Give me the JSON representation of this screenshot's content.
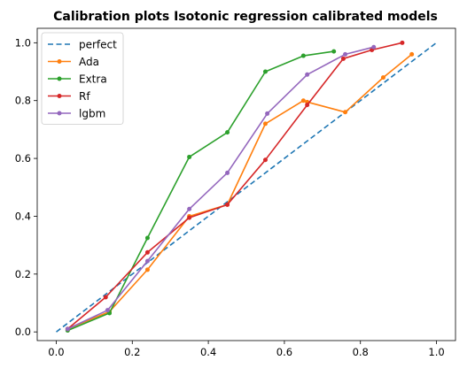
{
  "chart_data": {
    "type": "line",
    "title": "Calibration plots Isotonic regression calibrated models",
    "xlabel": "",
    "ylabel": "",
    "xlim": [
      -0.05,
      1.05
    ],
    "ylim": [
      -0.03,
      1.05
    ],
    "xticks": [
      0.0,
      0.2,
      0.4,
      0.6,
      0.8,
      1.0
    ],
    "yticks": [
      0.0,
      0.2,
      0.4,
      0.6,
      0.8,
      1.0
    ],
    "xtick_labels": [
      "0.0",
      "0.2",
      "0.4",
      "0.6",
      "0.8",
      "1.0"
    ],
    "ytick_labels": [
      "0.0",
      "0.2",
      "0.4",
      "0.6",
      "0.8",
      "1.0"
    ],
    "legend_position": "top-left",
    "series": [
      {
        "name": "perfect",
        "color": "#1f77b4",
        "style": "dashed",
        "markers": false,
        "x": [
          0.0,
          1.0
        ],
        "y": [
          0.0,
          1.0
        ]
      },
      {
        "name": "Ada",
        "color": "#ff7f0e",
        "style": "solid",
        "markers": true,
        "x": [
          0.03,
          0.14,
          0.24,
          0.35,
          0.45,
          0.55,
          0.65,
          0.66,
          0.76,
          0.86,
          0.935
        ],
        "y": [
          0.01,
          0.07,
          0.215,
          0.4,
          0.44,
          0.72,
          0.8,
          0.795,
          0.76,
          0.88,
          0.96
        ]
      },
      {
        "name": "Extra",
        "color": "#2ca02c",
        "style": "solid",
        "markers": true,
        "x": [
          0.03,
          0.14,
          0.24,
          0.35,
          0.45,
          0.55,
          0.65,
          0.73
        ],
        "y": [
          0.005,
          0.065,
          0.325,
          0.605,
          0.69,
          0.9,
          0.955,
          0.97
        ]
      },
      {
        "name": "Rf",
        "color": "#d62728",
        "style": "solid",
        "markers": true,
        "x": [
          0.03,
          0.13,
          0.24,
          0.35,
          0.45,
          0.55,
          0.66,
          0.755,
          0.83,
          0.91
        ],
        "y": [
          0.01,
          0.12,
          0.275,
          0.395,
          0.44,
          0.595,
          0.785,
          0.945,
          0.975,
          1.0
        ]
      },
      {
        "name": "lgbm",
        "color": "#9467bd",
        "style": "solid",
        "markers": true,
        "x": [
          0.03,
          0.135,
          0.24,
          0.35,
          0.45,
          0.555,
          0.66,
          0.76,
          0.835
        ],
        "y": [
          0.01,
          0.075,
          0.245,
          0.425,
          0.55,
          0.755,
          0.89,
          0.96,
          0.985
        ]
      }
    ]
  }
}
